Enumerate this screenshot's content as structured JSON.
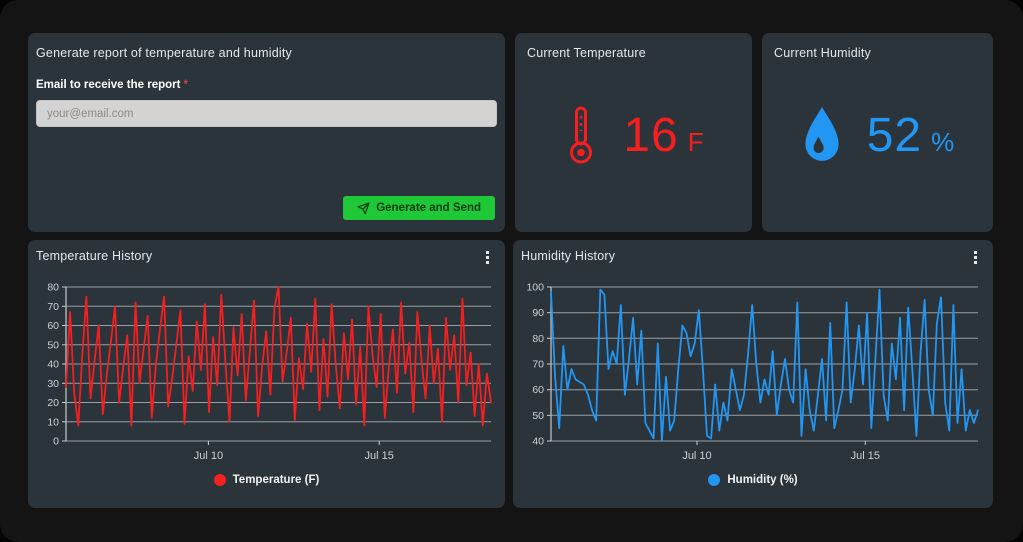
{
  "colors": {
    "page_bg": "#141414",
    "panel_bg": "#2b333b",
    "temp_red": "#f51f1f",
    "humidity_blue": "#2196f3",
    "button_green": "#1ec837",
    "button_text": "#073a10",
    "required_red": "#c9443f",
    "input_bg": "#d3d3d3",
    "grid_line": "#9aa0a5"
  },
  "report_panel": {
    "title": "Generate report of temperature and humidity",
    "email_label": "Email to receive the report",
    "required_marker": "*",
    "email_placeholder": "your@email.com",
    "email_value": "",
    "submit_label": "Generate and Send"
  },
  "current_temperature": {
    "title": "Current Temperature",
    "value": "16",
    "unit": "F"
  },
  "current_humidity": {
    "title": "Current Humidity",
    "value": "52",
    "unit": "%"
  },
  "chart_data": [
    {
      "type": "line",
      "title": "Temperature History",
      "legend": "Temperature (F)",
      "color": "#f51f1f",
      "ylim": [
        0,
        80
      ],
      "yticks": [
        0,
        10,
        20,
        30,
        40,
        50,
        60,
        70,
        80
      ],
      "xticks": [
        {
          "label": "Jul 10",
          "x": 0.335
        },
        {
          "label": "Jul 15",
          "x": 0.737
        }
      ],
      "grid": true,
      "legend_position": "bottom-center",
      "values": [
        28,
        67,
        25,
        8,
        45,
        75,
        22,
        42,
        60,
        14,
        35,
        52,
        70,
        20,
        38,
        55,
        8,
        72,
        30,
        48,
        65,
        12,
        40,
        58,
        75,
        18,
        33,
        50,
        68,
        9,
        44,
        26,
        62,
        37,
        71,
        15,
        54,
        29,
        76,
        41,
        10,
        59,
        34,
        66,
        21,
        47,
        73,
        13,
        39,
        57,
        24,
        69,
        80,
        31,
        46,
        64,
        11,
        43,
        27,
        61,
        36,
        74,
        16,
        53,
        23,
        71,
        40,
        17,
        56,
        32,
        63,
        19,
        49,
        8,
        70,
        45,
        28,
        66,
        12,
        38,
        58,
        25,
        72,
        35,
        51,
        15,
        67,
        42,
        22,
        60,
        30,
        48,
        10,
        64,
        37,
        55,
        20,
        74,
        29,
        46,
        13,
        40,
        8,
        35,
        20
      ]
    },
    {
      "type": "line",
      "title": "Humidity History",
      "legend": "Humidity (%)",
      "color": "#2196f3",
      "ylim": [
        40,
        100
      ],
      "yticks": [
        40,
        50,
        60,
        70,
        80,
        90,
        100
      ],
      "xticks": [
        {
          "label": "Jul 10",
          "x": 0.342
        },
        {
          "label": "Jul 15",
          "x": 0.736
        }
      ],
      "grid": true,
      "legend_position": "bottom-center",
      "values": [
        98,
        65,
        45,
        77,
        60,
        68,
        64,
        63,
        62,
        58,
        52,
        48,
        99,
        97,
        68,
        75,
        70,
        93,
        58,
        72,
        88,
        62,
        83,
        47,
        44,
        41,
        78,
        40,
        65,
        44,
        48,
        68,
        85,
        82,
        73,
        78,
        91,
        68,
        42,
        41,
        62,
        44,
        55,
        48,
        68,
        60,
        52,
        58,
        74,
        93,
        70,
        55,
        64,
        58,
        75,
        50,
        62,
        72,
        60,
        55,
        94,
        42,
        68,
        52,
        44,
        58,
        72,
        48,
        86,
        45,
        52,
        60,
        94,
        55,
        68,
        85,
        62,
        90,
        45,
        72,
        99,
        58,
        48,
        78,
        64,
        88,
        52,
        92,
        68,
        42,
        74,
        95,
        60,
        50,
        86,
        96,
        55,
        44,
        93,
        47,
        68,
        44,
        52,
        47,
        52
      ]
    }
  ]
}
